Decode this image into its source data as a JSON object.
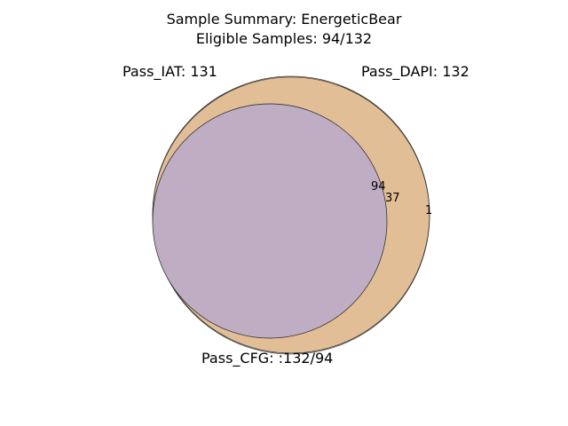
{
  "title": {
    "line1": "Sample Summary: EnergeticBear",
    "line2": "Eligible Samples: 94/132"
  },
  "sets": {
    "iat": {
      "label": "Pass_IAT: 131"
    },
    "dapi": {
      "label": "Pass_DAPI: 132"
    },
    "cfg": {
      "label": "Pass_CFG: :132/94"
    }
  },
  "regions": {
    "all_three": "94",
    "iat_dapi": "37",
    "dapi_only": "1"
  },
  "colors": {
    "outer_fill": "#e1be96",
    "inner_fill": "#bfadc3",
    "stroke": "#1a1a1a"
  }
}
